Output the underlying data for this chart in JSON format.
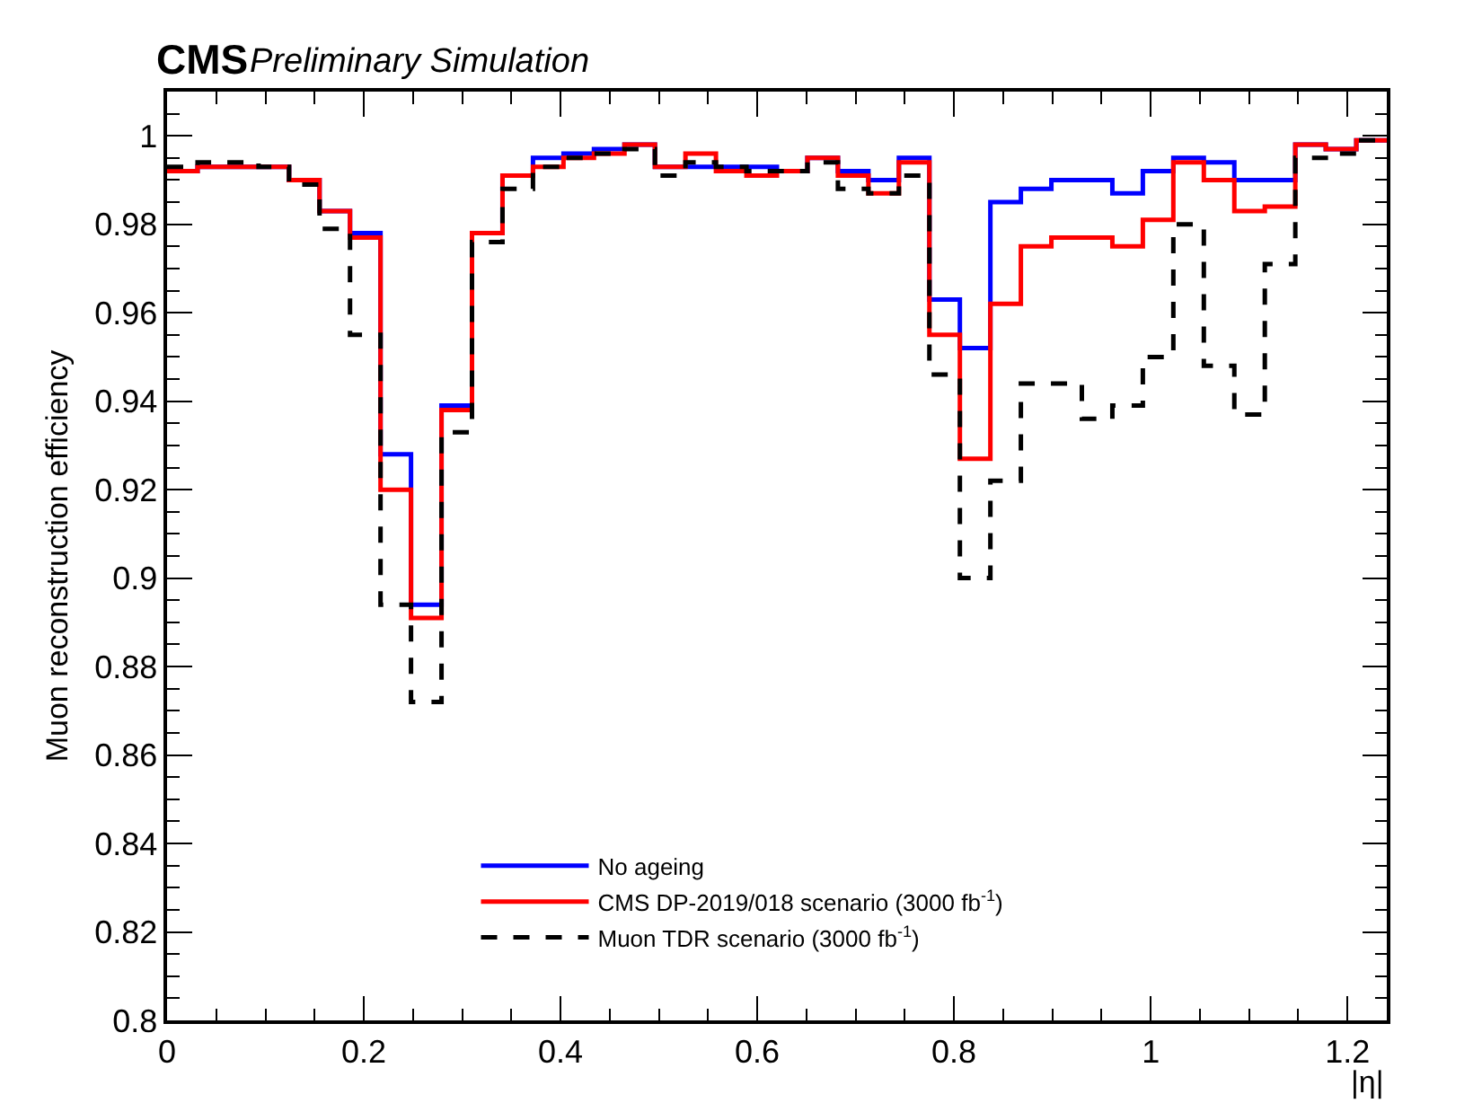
{
  "chart_data": {
    "type": "histogram",
    "title": "CMS",
    "subtitle": "Preliminary Simulation",
    "xlabel": "|η|",
    "ylabel": "Muon reconstruction efficiency",
    "bins": [
      0,
      0.031,
      0.062,
      0.093,
      0.124,
      0.155,
      0.186,
      0.217,
      0.248,
      0.279,
      0.31,
      0.341,
      0.372,
      0.403,
      0.434,
      0.465,
      0.496,
      0.527,
      0.558,
      0.589,
      0.62,
      0.651,
      0.682,
      0.713,
      0.744,
      0.775,
      0.806,
      0.837,
      0.868,
      0.899,
      0.93,
      0.961,
      0.992,
      1.023,
      1.054,
      1.085,
      1.116,
      1.147,
      1.178,
      1.209,
      1.24
    ],
    "series": [
      {
        "name": "No ageing",
        "color": "#0000ff",
        "line_style": "solid",
        "values": [
          0.992,
          0.993,
          0.993,
          0.993,
          0.99,
          0.983,
          0.978,
          0.928,
          0.894,
          0.939,
          0.978,
          0.991,
          0.995,
          0.996,
          0.997,
          0.998,
          0.993,
          0.993,
          0.993,
          0.993,
          0.992,
          0.995,
          0.992,
          0.99,
          0.995,
          0.963,
          0.952,
          0.985,
          0.988,
          0.99,
          0.99,
          0.987,
          0.992,
          0.995,
          0.994,
          0.99,
          0.99,
          0.998,
          0.997,
          0.999
        ]
      },
      {
        "name": "CMS DP-2019/018 scenario (3000 fb$^{-1}$)",
        "color": "#ff0000",
        "line_style": "solid",
        "values": [
          0.992,
          0.993,
          0.993,
          0.993,
          0.99,
          0.983,
          0.977,
          0.92,
          0.891,
          0.938,
          0.978,
          0.991,
          0.993,
          0.995,
          0.996,
          0.998,
          0.993,
          0.996,
          0.992,
          0.991,
          0.992,
          0.995,
          0.991,
          0.987,
          0.994,
          0.955,
          0.927,
          0.962,
          0.975,
          0.977,
          0.977,
          0.975,
          0.981,
          0.994,
          0.99,
          0.983,
          0.984,
          0.998,
          0.997,
          0.999
        ]
      },
      {
        "name": "Muon TDR scenario (3000 fb$^{-1}$)",
        "color": "#000000",
        "line_style": "dashed",
        "values": [
          0.993,
          0.994,
          0.994,
          0.993,
          0.989,
          0.979,
          0.955,
          0.894,
          0.872,
          0.933,
          0.976,
          0.988,
          0.993,
          0.995,
          0.996,
          0.997,
          0.991,
          0.994,
          0.993,
          0.992,
          0.992,
          0.994,
          0.988,
          0.987,
          0.991,
          0.946,
          0.9,
          0.922,
          0.944,
          0.944,
          0.936,
          0.939,
          0.95,
          0.98,
          0.948,
          0.937,
          0.971,
          0.995,
          0.996,
          0.999
        ]
      }
    ],
    "xlim": [
      0,
      1.24
    ],
    "xticks": [
      0,
      0.2,
      0.4,
      0.6,
      0.8,
      1,
      1.2
    ],
    "ylim": [
      0.8,
      1.01
    ],
    "yticks": [
      0.8,
      0.82,
      0.84,
      0.86,
      0.88,
      0.9,
      0.92,
      0.94,
      0.96,
      0.98,
      1
    ],
    "grid": false,
    "legend": "bottom left"
  }
}
